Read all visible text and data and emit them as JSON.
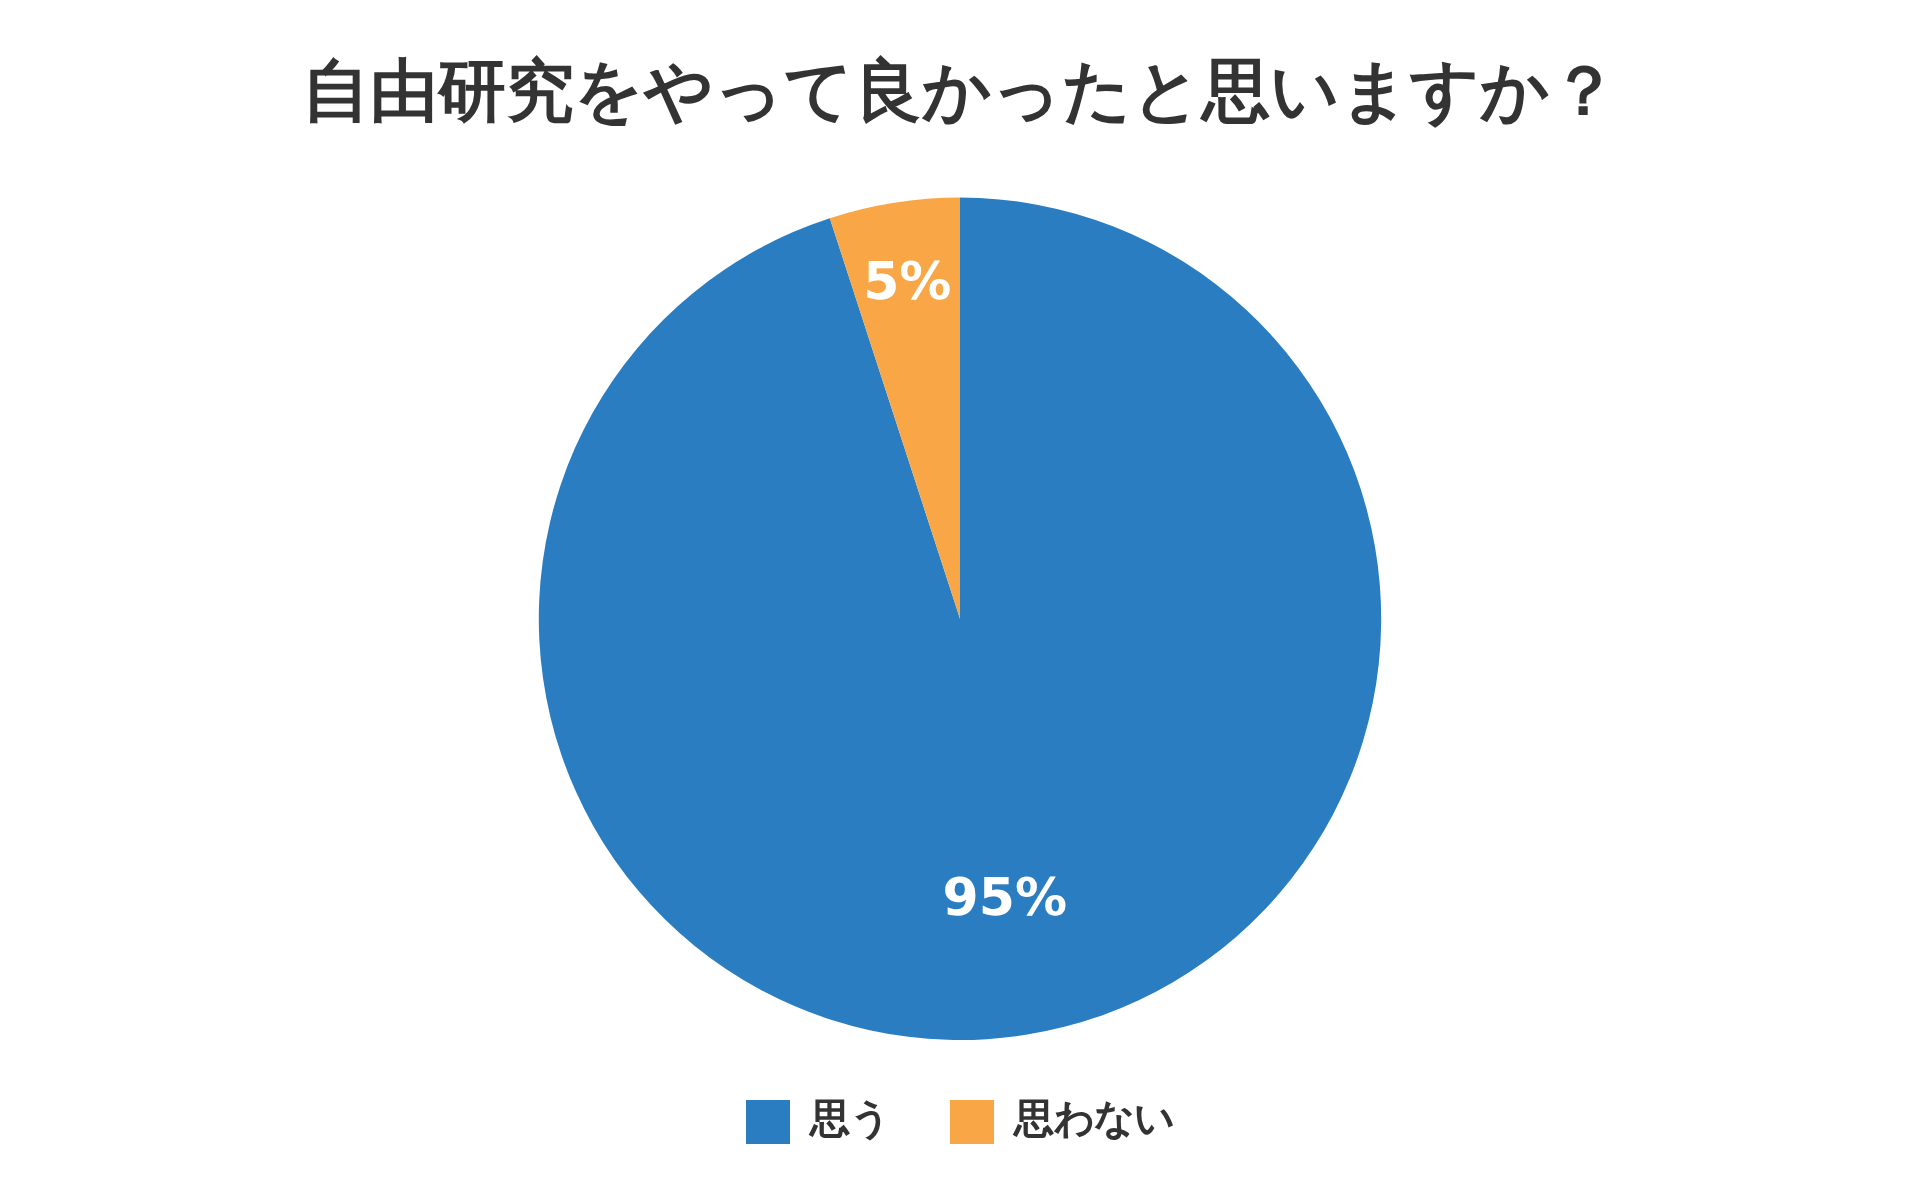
{
  "chart_data": {
    "type": "pie",
    "title": "自由研究をやって良かったと思いますか？",
    "categories": [
      "思う",
      "思わない"
    ],
    "values": [
      95,
      5
    ],
    "colors": [
      "#2a7dc1",
      "#f9a646"
    ],
    "value_labels": [
      "95%",
      "5%"
    ],
    "legend": "bottom"
  }
}
